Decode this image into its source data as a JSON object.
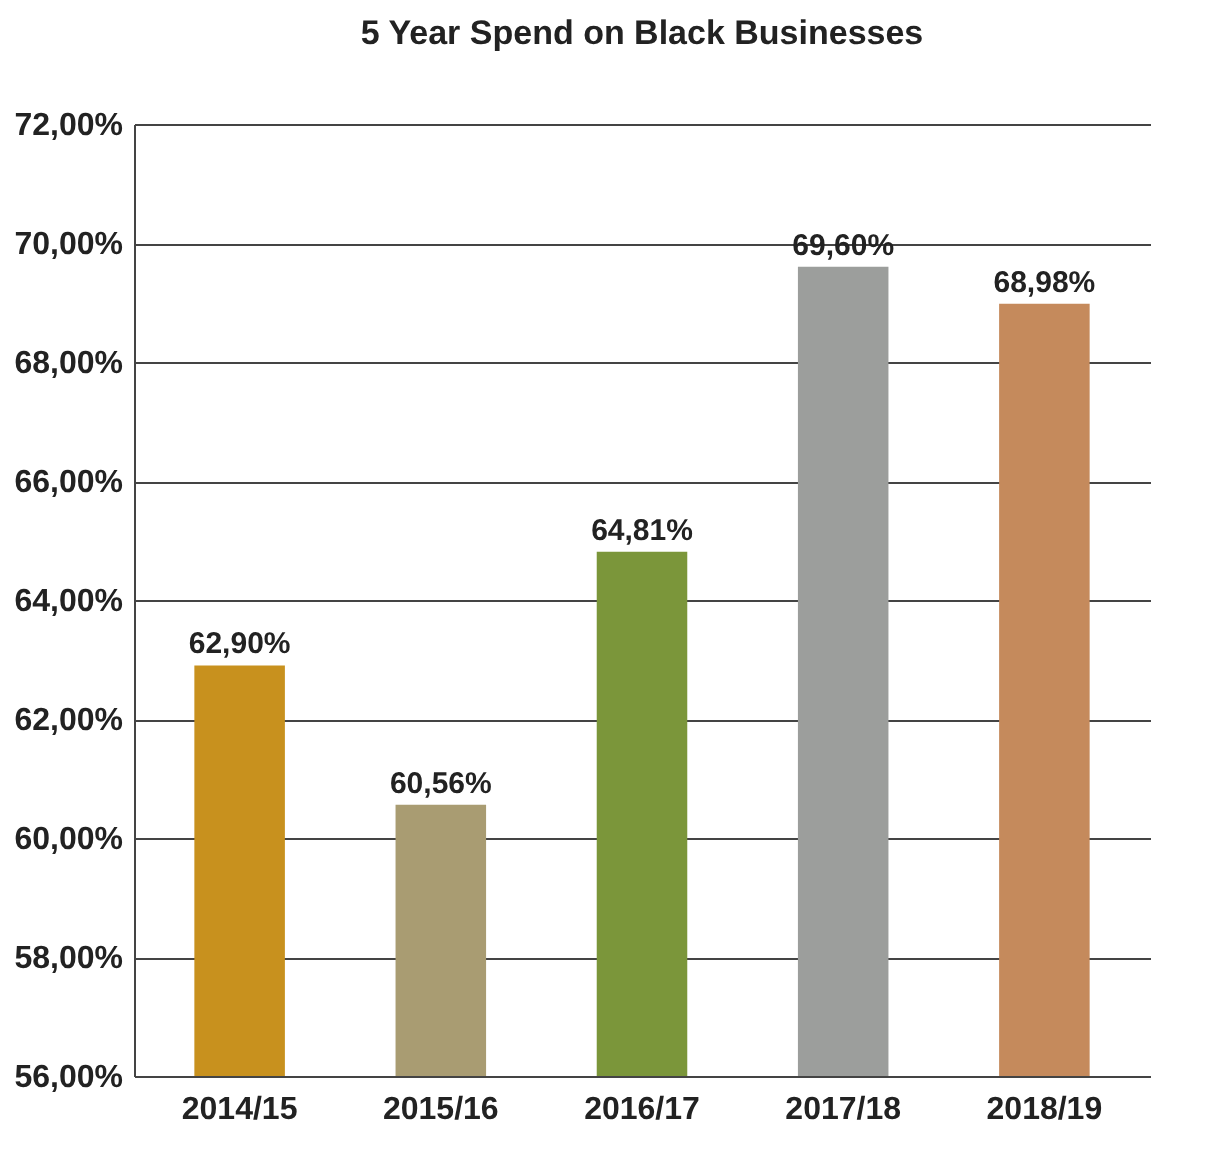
{
  "chart_data": {
    "type": "bar",
    "title": "5 Year Spend on Black Businesses",
    "categories": [
      "2014/15",
      "2015/16",
      "2016/17",
      "2017/18",
      "2018/19"
    ],
    "values": [
      62.9,
      60.56,
      64.81,
      69.6,
      68.98
    ],
    "colors": [
      "#c8911e",
      "#a99c72",
      "#7b963a",
      "#9c9e9c",
      "#c58a5c"
    ],
    "value_labels": [
      "62,90%",
      "60,56%",
      "64,81%",
      "69,60%",
      "68,98%"
    ],
    "ylim": [
      56,
      72
    ],
    "yticks": [
      {
        "value": 56,
        "label": "56,00%"
      },
      {
        "value": 58,
        "label": "58,00%"
      },
      {
        "value": 60,
        "label": "60,00%"
      },
      {
        "value": 62,
        "label": "62,00%"
      },
      {
        "value": 64,
        "label": "64,00%"
      },
      {
        "value": 66,
        "label": "66,00%"
      },
      {
        "value": 68,
        "label": "68,00%"
      },
      {
        "value": 70,
        "label": "70,00%"
      },
      {
        "value": 72,
        "label": "72,00%"
      }
    ],
    "grid": "y"
  }
}
